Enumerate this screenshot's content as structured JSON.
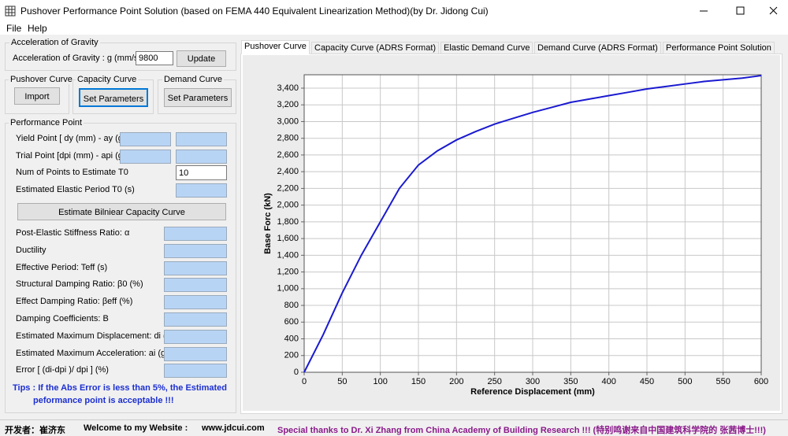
{
  "window": {
    "title": "Pushover Performance Point Solution (based on FEMA 440 Equivalent Linearization Method)(by Dr. Jidong Cui)"
  },
  "menu": [
    "File",
    "Help"
  ],
  "gravity": {
    "title": "Acceleration of Gravity",
    "label": "Acceleration of Gravity : g (mm/s/s)",
    "value": "9800",
    "button": "Update"
  },
  "curve_groups": [
    {
      "title": "Pushover Curve",
      "button": "Import"
    },
    {
      "title": "Capacity Curve",
      "button": "Set Parameters"
    },
    {
      "title": "Demand Curve",
      "button": "Set Parameters"
    }
  ],
  "performance": {
    "title": "Performance Point",
    "input_labels": [
      "Yield Point [ dy (mm) - ay (g) ]",
      "Trial Point [dpi (mm) - api (g) ]",
      "Num of Points to Estimate T0",
      "Estimated Elastic Period T0 (s)"
    ],
    "num_points": "10",
    "button": "Estimate Bilniear Capacity Curve",
    "result_labels": [
      "Post-Elastic Stiffness Ratio: α",
      "Ductility",
      "Effective Period: Teff (s)",
      "Structural Damping Ratio: β0 (%)",
      "Effect Damping Ratio: βeff (%)",
      "Damping Coefficients: B",
      "Estimated Maximum Displacement: di (mm)",
      "Estimated Maximum Acceleration: ai (g)",
      "Error [ (di-dpi )/ dpi ] (%)"
    ],
    "tips": [
      "Tips : If the Abs Error is less than 5%, the Estimated",
      "peformance point is acceptable !!!"
    ]
  },
  "tabs": [
    "Pushover Curve",
    "Capacity Curve (ADRS Format)",
    "Elastic Demand Curve",
    "Demand Curve (ADRS Format)",
    "Performance Point Solution"
  ],
  "active_tab": 0,
  "status": [
    "开发者：崔济东",
    "Welcome to my Website :",
    "www.jdcui.com",
    "Special thanks to Dr. Xi Zhang from China Academy of Building Research !!! (特别鸣谢来自中国建筑科学院的 张茜博士!!!)"
  ],
  "chart_data": {
    "type": "line",
    "x_label": "Reference Displacement (mm)",
    "y_label": "Base Forc (kN)",
    "x": [
      0,
      25,
      50,
      75,
      100,
      125,
      150,
      175,
      200,
      225,
      250,
      275,
      300,
      325,
      350,
      375,
      400,
      425,
      450,
      475,
      500,
      525,
      550,
      575,
      600
    ],
    "values": [
      0,
      450,
      950,
      1400,
      1800,
      2200,
      2480,
      2650,
      2780,
      2880,
      2970,
      3040,
      3110,
      3170,
      3230,
      3270,
      3310,
      3350,
      3390,
      3420,
      3450,
      3480,
      3500,
      3520,
      3550
    ],
    "color": "#1a1ad0",
    "xlim": [
      0,
      600
    ],
    "ylim": [
      0,
      3560
    ],
    "xticks": [
      0,
      50,
      100,
      150,
      200,
      250,
      300,
      350,
      400,
      450,
      500,
      550,
      600
    ],
    "yticks": [
      0,
      200,
      400,
      600,
      800,
      {
        "value": 1000,
        "label": "1,000"
      },
      {
        "value": 1200,
        "label": "1,200"
      },
      {
        "value": 1400,
        "label": "1,400"
      },
      {
        "value": 1600,
        "label": "1,600"
      },
      {
        "value": 1800,
        "label": "1,800"
      },
      {
        "value": 2000,
        "label": "2,000"
      },
      {
        "value": 2200,
        "label": "2,200"
      },
      {
        "value": 2400,
        "label": "2,400"
      },
      {
        "value": 2600,
        "label": "2,600"
      },
      {
        "value": 2800,
        "label": "2,800"
      },
      {
        "value": 3000,
        "label": "3,000"
      },
      {
        "value": 3200,
        "label": "3,200"
      },
      {
        "value": 3400,
        "label": "3,400"
      }
    ],
    "grid": true
  }
}
